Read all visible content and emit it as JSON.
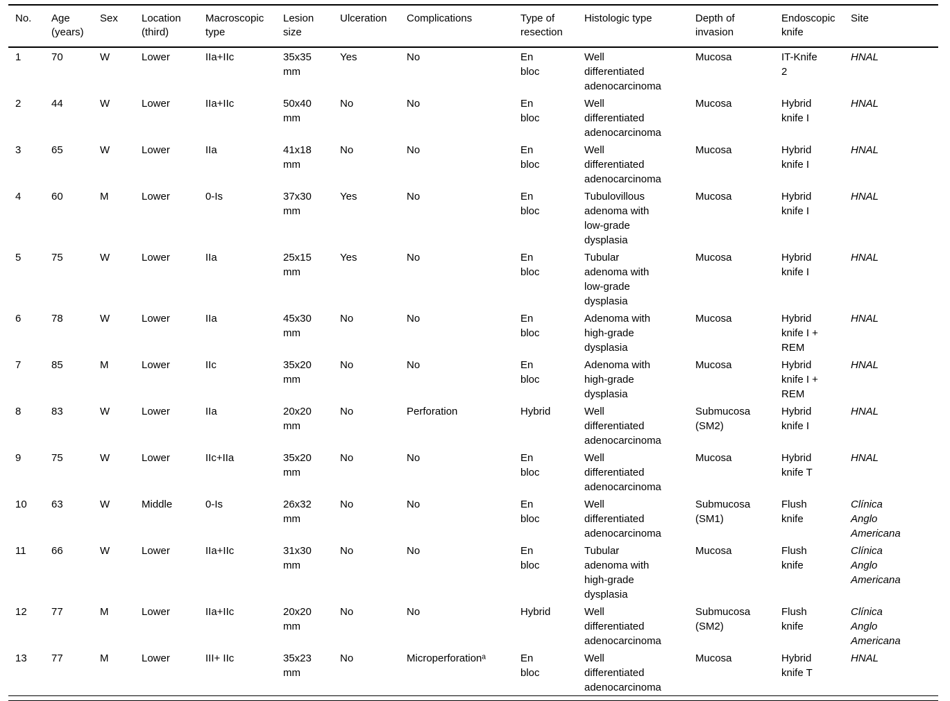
{
  "colors": {
    "background": "#ffffff",
    "text": "#000000",
    "rule": "#000000"
  },
  "table": {
    "columns": [
      {
        "key": "no",
        "label": "No."
      },
      {
        "key": "age",
        "label": "Age\n(years)"
      },
      {
        "key": "sex",
        "label": "Sex"
      },
      {
        "key": "location",
        "label": "Location\n(third)"
      },
      {
        "key": "macroscopic_type",
        "label": "Macroscopic\ntype"
      },
      {
        "key": "lesion_size",
        "label": "Lesion\nsize"
      },
      {
        "key": "ulceration",
        "label": "Ulceration"
      },
      {
        "key": "complications",
        "label": "Complications"
      },
      {
        "key": "resection_type",
        "label": "Type of\nresection"
      },
      {
        "key": "histologic_type",
        "label": "Histologic type"
      },
      {
        "key": "invasion_depth",
        "label": "Depth of\ninvasion"
      },
      {
        "key": "endoscopic_knife",
        "label": "Endoscopic\nknife"
      },
      {
        "key": "site",
        "label": "Site"
      }
    ],
    "rows": [
      [
        "1",
        "70",
        "W",
        "Lower",
        "IIa+IIc",
        "35x35\nmm",
        "Yes",
        "No",
        "En\nbloc",
        "Well\ndifferentiated\nadenocarcinoma",
        "Mucosa",
        "IT-Knife\n2",
        "HNAL"
      ],
      [
        "2",
        "44",
        "W",
        "Lower",
        "IIa+IIc",
        "50x40\nmm",
        "No",
        "No",
        "En\nbloc",
        "Well\ndifferentiated\nadenocarcinoma",
        "Mucosa",
        "Hybrid\nknife I",
        "HNAL"
      ],
      [
        "3",
        "65",
        "W",
        "Lower",
        "IIa",
        "41x18\nmm",
        "No",
        "No",
        "En\nbloc",
        "Well\ndifferentiated\nadenocarcinoma",
        "Mucosa",
        "Hybrid\nknife I",
        "HNAL"
      ],
      [
        "4",
        "60",
        "M",
        "Lower",
        "0-Is",
        "37x30\nmm",
        "Yes",
        "No",
        "En\nbloc",
        "Tubulovillous\nadenoma with\nlow-grade\ndysplasia",
        "Mucosa",
        "Hybrid\nknife I",
        "HNAL"
      ],
      [
        "5",
        "75",
        "W",
        "Lower",
        "IIa",
        "25x15\nmm",
        "Yes",
        "No",
        "En\nbloc",
        "Tubular\nadenoma with\nlow-grade\ndysplasia",
        "Mucosa",
        "Hybrid\nknife I",
        "HNAL"
      ],
      [
        "6",
        "78",
        "W",
        "Lower",
        "IIa",
        "45x30\nmm",
        "No",
        "No",
        "En\nbloc",
        "Adenoma with\nhigh-grade\ndysplasia",
        "Mucosa",
        "Hybrid\nknife I +\nREM",
        "HNAL"
      ],
      [
        "7",
        "85",
        "M",
        "Lower",
        "IIc",
        "35x20\nmm",
        "No",
        "No",
        "En\nbloc",
        "Adenoma with\nhigh-grade\ndysplasia",
        "Mucosa",
        "Hybrid\nknife I +\nREM",
        "HNAL"
      ],
      [
        "8",
        "83",
        "W",
        "Lower",
        "IIa",
        "20x20\nmm",
        "No",
        "Perforation",
        "Hybrid",
        "Well\ndifferentiated\nadenocarcinoma",
        "Submucosa\n(SM2)",
        "Hybrid\nknife I",
        "HNAL"
      ],
      [
        "9",
        "75",
        "W",
        "Lower",
        "IIc+IIa",
        "35x20\nmm",
        "No",
        "No",
        "En\nbloc",
        "Well\ndifferentiated\nadenocarcinoma",
        "Mucosa",
        "Hybrid\nknife T",
        "HNAL"
      ],
      [
        "10",
        "63",
        "W",
        "Middle",
        "0-Is",
        "26x32\nmm",
        "No",
        "No",
        "En\nbloc",
        "Well\ndifferentiated\nadenocarcinoma",
        "Submucosa\n(SM1)",
        "Flush\nknife",
        "Clínica\nAnglo\nAmericana"
      ],
      [
        "11",
        "66",
        "W",
        "Lower",
        "IIa+IIc",
        "31x30\nmm",
        "No",
        "No",
        "En\nbloc",
        "Tubular\nadenoma with\nhigh-grade\ndysplasia",
        "Mucosa",
        "Flush\nknife",
        "Clínica\nAnglo\nAmericana"
      ],
      [
        "12",
        "77",
        "M",
        "Lower",
        "IIa+IIc",
        "20x20\nmm",
        "No",
        "No",
        "Hybrid",
        "Well\ndifferentiated\nadenocarcinoma",
        "Submucosa\n(SM2)",
        "Flush\nknife",
        "Clínica\nAnglo\nAmericana"
      ],
      [
        "13",
        "77",
        "M",
        "Lower",
        "III+ IIc",
        "35x23\nmm",
        "No",
        "Microperforationᵃ",
        "En\nbloc",
        "Well\ndifferentiated\nadenocarcinoma",
        "Mucosa",
        "Hybrid\nknife T",
        "HNAL"
      ]
    ]
  }
}
